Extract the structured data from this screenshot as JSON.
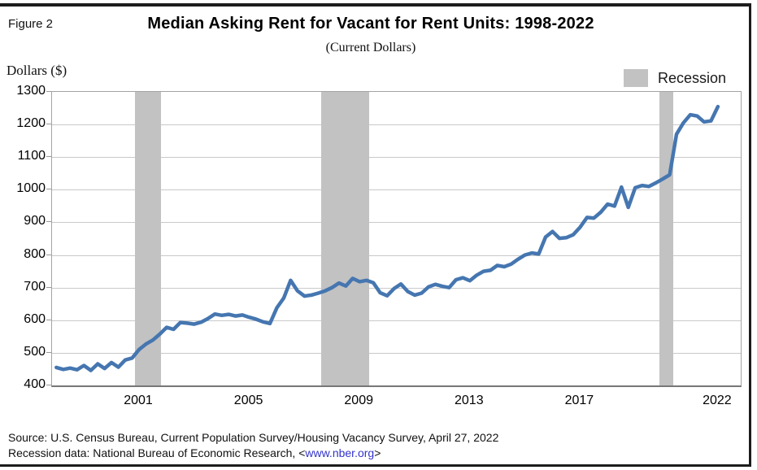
{
  "figure_label": "Figure 2",
  "header": {
    "title": "Median Asking Rent for Vacant for Rent Units: 1998-2022",
    "subtitle": "(Current Dollars)"
  },
  "y_axis_title": "Dollars ($)",
  "legend": {
    "label": "Recession"
  },
  "footer": {
    "source_line": "Source: U.S. Census Bureau, Current Population Survey/Housing Vacancy Survey, April 27, 2022",
    "recession_line_prefix": "Recession data: National Bureau of Economic Research, <",
    "recession_link": "www.nber.org",
    "recession_line_suffix": ">"
  },
  "colors": {
    "line": "#4576b0",
    "recession_band": "#c2c2c2",
    "gridline": "#c9c9c9",
    "frame": "#a3a3a3",
    "link": "#3333cc"
  },
  "chart_data": {
    "type": "line",
    "title": "Median Asking Rent for Vacant for Rent Units: 1998-2022",
    "subtitle": "(Current Dollars)",
    "xlabel": "",
    "ylabel": "Dollars ($)",
    "ylim": [
      400,
      1300
    ],
    "y_ticks": [
      400,
      500,
      600,
      700,
      800,
      900,
      1000,
      1100,
      1200,
      1300
    ],
    "x_tick_years": [
      2001,
      2005,
      2009,
      2013,
      2017,
      2022
    ],
    "x_tick_labels": [
      "2001",
      "2005",
      "2009",
      "2013",
      "2017",
      "2022"
    ],
    "grid": true,
    "legend_position": "top-right",
    "x_start": 1998.0,
    "x_step": 0.25,
    "x_end": 2022.0,
    "frequency": "quarterly",
    "series": [
      {
        "name": "Median asking rent (current dollars)",
        "values": [
          455,
          449,
          453,
          448,
          461,
          446,
          466,
          452,
          470,
          456,
          478,
          484,
          510,
          527,
          539,
          557,
          578,
          572,
          593,
          591,
          588,
          594,
          605,
          619,
          615,
          618,
          613,
          616,
          609,
          603,
          595,
          590,
          638,
          668,
          722,
          690,
          674,
          677,
          683,
          690,
          700,
          714,
          705,
          728,
          718,
          722,
          715,
          684,
          675,
          697,
          711,
          688,
          677,
          683,
          702,
          710,
          704,
          700,
          724,
          730,
          721,
          738,
          750,
          753,
          768,
          764,
          772,
          787,
          800,
          806,
          803,
          855,
          872,
          851,
          853,
          862,
          885,
          915,
          913,
          931,
          956,
          950,
          1008,
          946,
          1006,
          1013,
          1010,
          1021,
          1033,
          1046,
          1170,
          1205,
          1230,
          1226,
          1208,
          1211,
          1255
        ]
      }
    ],
    "recession_bands": [
      {
        "label": "Recession",
        "start": 2000.85,
        "end": 2001.8
      },
      {
        "label": "Recession",
        "start": 2007.6,
        "end": 2009.35
      },
      {
        "label": "Recession",
        "start": 2019.87,
        "end": 2020.37
      }
    ]
  }
}
